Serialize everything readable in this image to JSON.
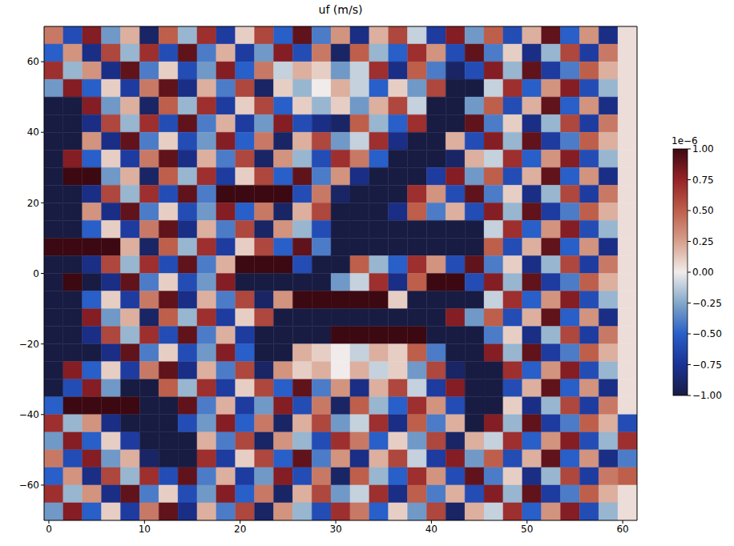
{
  "chart_data": {
    "type": "heatmap",
    "title": "uf (m/s)",
    "xlim": [
      -0.5,
      61.5
    ],
    "ylim": [
      -70,
      70
    ],
    "xticks": [
      0,
      10,
      20,
      30,
      40,
      50,
      60
    ],
    "yticks": [
      {
        "value": -60,
        "label": "−60"
      },
      {
        "value": -40,
        "label": "−40"
      },
      {
        "value": -20,
        "label": "−20"
      },
      0,
      20,
      40,
      60
    ],
    "x": [
      0.5,
      2.5,
      4.5,
      6.5,
      8.5,
      10.5,
      12.5,
      14.5,
      16.5,
      18.5,
      20.5,
      22.5,
      24.5,
      26.5,
      28.5,
      30.5,
      32.5,
      34.5,
      36.5,
      38.5,
      40.5,
      42.5,
      44.5,
      46.5,
      48.5,
      50.5,
      52.5,
      54.5,
      56.5,
      58.5,
      60.5
    ],
    "y": [
      67.5,
      62.5,
      57.5,
      52.5,
      47.5,
      42.5,
      37.5,
      32.5,
      27.5,
      22.5,
      17.5,
      12.5,
      7.5,
      2.5,
      -2.5,
      -7.5,
      -12.5,
      -17.5,
      -22.5,
      -27.5,
      -32.5,
      -37.5,
      -42.5,
      -47.5,
      -52.5,
      -57.5,
      -62.5,
      -67.5
    ],
    "cells": [
      [
        0.4,
        -0.6,
        0.8,
        -0.3,
        0.2,
        -0.9,
        0.5,
        -0.2,
        0.7,
        -0.7,
        0.1,
        0.6,
        -0.5,
        0.9,
        -0.4,
        0.3,
        -0.8,
        0.2,
        0.6,
        -0.1,
        -0.7,
        0.8,
        -0.3,
        0.5,
        -0.6,
        0.2,
        0.9,
        -0.5,
        0.3,
        -0.8,
        0.05
      ],
      [
        -0.5,
        0.3,
        -0.8,
        0.6,
        -0.2,
        0.7,
        -0.6,
        0.9,
        -0.4,
        0.2,
        -0.7,
        -0.3,
        0.8,
        -0.6,
        0.4,
        -0.9,
        0.5,
        -0.2,
        -0.5,
        0.7,
        0.3,
        -0.6,
        0.9,
        -0.4,
        0.1,
        -0.8,
        -0.2,
        0.6,
        -0.7,
        0.4,
        0.05
      ],
      [
        0.7,
        -0.2,
        0.3,
        -0.8,
        0.9,
        -0.4,
        0.1,
        -0.6,
        -0.3,
        0.8,
        -0.5,
        0.4,
        -0.1,
        0.2,
        0.1,
        -0.3,
        -0.1,
        0.7,
        -0.8,
        0.5,
        -0.4,
        -0.9,
        -0.6,
        0.8,
        -0.2,
        0.9,
        -0.7,
        -0.4,
        0.5,
        0.2,
        0.05
      ],
      [
        -0.3,
        0.8,
        -0.5,
        0.1,
        -0.7,
        0.4,
        0.9,
        -0.8,
        0.2,
        -0.4,
        0.6,
        -0.9,
        0.1,
        -0.2,
        0.0,
        0.2,
        -0.1,
        -0.5,
        0.1,
        -0.3,
        0.6,
        -1,
        -1,
        -0.1,
        0.7,
        -0.5,
        0.3,
        0.8,
        -0.6,
        -0.2,
        0.05
      ],
      [
        -1,
        -1,
        0.8,
        -0.3,
        0.2,
        -0.9,
        0.5,
        -0.2,
        0.7,
        -0.7,
        0.1,
        0.6,
        -0.5,
        0.1,
        -0.2,
        0.1,
        -0.3,
        0.2,
        0.6,
        -0.1,
        -1,
        -1,
        -0.3,
        0.5,
        -0.6,
        0.2,
        0.9,
        -0.5,
        0.3,
        -0.8,
        0.05
      ],
      [
        -1,
        -1,
        -0.8,
        0.6,
        -0.2,
        0.7,
        -0.6,
        0.9,
        -0.4,
        0.2,
        -0.7,
        -0.3,
        0.8,
        -0.6,
        -0.8,
        -0.9,
        0.5,
        -0.2,
        -0.5,
        0.7,
        -1,
        -1,
        0.9,
        -0.4,
        0.1,
        -0.8,
        -0.2,
        0.6,
        -0.7,
        0.4,
        0.05
      ],
      [
        -1,
        -1,
        0.3,
        -0.8,
        0.9,
        -0.4,
        0.1,
        -0.6,
        -0.3,
        0.8,
        -0.5,
        0.4,
        -0.9,
        0.2,
        0.6,
        -0.3,
        -0.1,
        0.7,
        -0.8,
        -1,
        -1,
        0.2,
        -0.6,
        0.8,
        -0.2,
        0.9,
        -0.7,
        -0.4,
        0.5,
        0.2,
        0.05
      ],
      [
        -1,
        0.8,
        -0.5,
        0.1,
        -0.7,
        0.4,
        0.9,
        -0.8,
        0.2,
        -0.4,
        0.6,
        -0.9,
        0.3,
        -0.2,
        -0.6,
        0.7,
        0.4,
        -0.5,
        -1,
        -1,
        -1,
        -0.9,
        0.2,
        -0.1,
        0.7,
        -0.5,
        0.3,
        0.8,
        -0.6,
        -0.2,
        0.05
      ],
      [
        -1,
        1,
        1,
        -0.3,
        0.2,
        -0.9,
        0.5,
        -0.2,
        0.7,
        -0.7,
        0.1,
        0.6,
        -0.5,
        0.9,
        -0.4,
        0.3,
        -0.8,
        -1,
        -1,
        -1,
        -0.7,
        0.8,
        -0.3,
        0.5,
        -0.6,
        0.2,
        0.9,
        -0.5,
        0.3,
        -0.8,
        0.05
      ],
      [
        -1,
        -1,
        -0.8,
        0.6,
        -0.2,
        0.7,
        -0.6,
        0.9,
        -0.4,
        1,
        1,
        1,
        1,
        -0.6,
        0.4,
        -0.9,
        -1,
        -1,
        -1,
        0.7,
        0.3,
        -0.6,
        0.9,
        -0.4,
        0.1,
        -0.8,
        -0.2,
        0.6,
        -0.7,
        0.4,
        0.05
      ],
      [
        -1,
        -1,
        0.3,
        -0.8,
        0.9,
        -0.4,
        0.1,
        -0.6,
        -0.3,
        0.8,
        -0.5,
        0.4,
        -0.9,
        0.2,
        0.6,
        -1,
        -1,
        -1,
        -0.8,
        0.5,
        -0.4,
        0.2,
        -0.6,
        0.8,
        -0.2,
        0.9,
        -0.7,
        -0.4,
        0.5,
        0.2,
        0.05
      ],
      [
        -1,
        -1,
        -0.5,
        0.1,
        -0.7,
        0.4,
        0.9,
        -0.8,
        0.2,
        -0.4,
        0.6,
        -0.9,
        0.3,
        -0.2,
        -0.6,
        -1,
        -1,
        -1,
        -1,
        -1,
        -1,
        -1,
        -1,
        -0.1,
        0.7,
        -0.5,
        0.3,
        0.8,
        -0.6,
        -0.2,
        0.05
      ],
      [
        1,
        1,
        1,
        1,
        0.2,
        -0.9,
        0.5,
        -0.2,
        0.7,
        -0.7,
        0.1,
        0.6,
        -0.5,
        0.9,
        -0.4,
        -1,
        -1,
        -1,
        -1,
        -1,
        -1,
        -1,
        -1,
        0.5,
        -0.6,
        0.2,
        0.9,
        -0.5,
        0.3,
        -0.8,
        0.05
      ],
      [
        -1,
        -1,
        -0.8,
        0.6,
        -0.2,
        0.7,
        -0.6,
        0.9,
        -0.4,
        0.2,
        1,
        1,
        1,
        -0.6,
        -1,
        -1,
        0.5,
        -0.2,
        -0.5,
        0.7,
        0.3,
        -0.6,
        0.9,
        -0.4,
        0.1,
        -0.8,
        -0.2,
        0.6,
        -0.7,
        0.4,
        0.05
      ],
      [
        -1,
        1,
        -1,
        -0.8,
        0.9,
        -0.4,
        0.1,
        -0.6,
        -0.3,
        0.8,
        -1,
        -1,
        -1,
        -1,
        -1,
        -0.3,
        -0.1,
        0.7,
        -0.8,
        0.5,
        1,
        1,
        -0.6,
        0.8,
        -0.2,
        0.9,
        -0.7,
        -0.4,
        0.5,
        0.2,
        0.05
      ],
      [
        -1,
        -1,
        -0.5,
        0.1,
        -0.7,
        0.4,
        0.9,
        -0.8,
        0.2,
        -0.4,
        0.6,
        -0.9,
        0.3,
        1,
        1,
        1,
        1,
        1,
        0.1,
        -1,
        -1,
        -1,
        -1,
        -0.1,
        0.7,
        -0.5,
        0.3,
        0.8,
        -0.6,
        -0.2,
        0.05
      ],
      [
        -1,
        -1,
        0.8,
        -0.3,
        0.2,
        -0.9,
        0.5,
        -0.2,
        0.7,
        -0.7,
        0.1,
        0.6,
        -1,
        -1,
        -1,
        -1,
        -1,
        -1,
        -1,
        -1,
        -1,
        0.8,
        -0.3,
        0.5,
        -0.6,
        0.2,
        0.9,
        -0.5,
        0.3,
        -0.8,
        0.05
      ],
      [
        -1,
        -1,
        -0.8,
        0.6,
        -0.2,
        0.7,
        -0.6,
        0.9,
        -0.4,
        0.2,
        -0.7,
        -1,
        -1,
        -1,
        -1,
        1,
        1,
        1,
        1,
        1,
        -1,
        -1,
        -1,
        -0.4,
        0.1,
        -0.8,
        -0.2,
        0.6,
        -0.7,
        0.4,
        0.05
      ],
      [
        -1,
        -1,
        -1,
        -0.8,
        0.9,
        -0.4,
        0.1,
        -0.6,
        -0.3,
        0.8,
        -0.5,
        -1,
        -1,
        0.2,
        0.1,
        0.0,
        -0.1,
        0.2,
        0.1,
        0.5,
        -0.4,
        -1,
        -1,
        0.8,
        -0.2,
        0.9,
        -0.7,
        -0.4,
        0.5,
        0.2,
        0.05
      ],
      [
        -1,
        0.8,
        -0.5,
        0.1,
        -0.7,
        0.4,
        0.9,
        -0.8,
        0.2,
        -0.4,
        0.6,
        -0.9,
        0.3,
        0.1,
        0.2,
        0.0,
        0.2,
        -0.1,
        0.1,
        -0.3,
        0.6,
        -0.9,
        -1,
        -1,
        0.7,
        -0.5,
        0.3,
        0.8,
        -0.6,
        -0.2,
        0.05
      ],
      [
        -1,
        -0.6,
        0.8,
        -0.3,
        -1,
        -1,
        0.5,
        -0.2,
        0.7,
        -0.7,
        0.1,
        0.6,
        -0.5,
        0.9,
        -0.4,
        0.3,
        -0.8,
        0.2,
        0.6,
        -0.1,
        -0.7,
        0.8,
        -1,
        -1,
        -0.6,
        0.2,
        0.9,
        -0.5,
        0.3,
        -0.8,
        0.05
      ],
      [
        -0.5,
        1,
        1,
        1,
        1,
        -1,
        -1,
        0.9,
        -0.4,
        0.2,
        -0.7,
        -0.3,
        0.8,
        -0.6,
        0.4,
        -0.9,
        0.5,
        -0.2,
        -0.5,
        0.7,
        0.3,
        -0.6,
        -1,
        -1,
        0.1,
        -0.8,
        -0.2,
        0.6,
        -0.7,
        0.4,
        0.05
      ],
      [
        0.7,
        -0.2,
        0.3,
        -0.8,
        -1,
        -1,
        -1,
        -0.6,
        -0.3,
        0.8,
        -0.5,
        0.4,
        -0.9,
        0.2,
        0.6,
        -0.3,
        -0.1,
        0.7,
        -0.8,
        0.5,
        -0.4,
        0.2,
        -1,
        0.8,
        -0.2,
        0.9,
        -0.7,
        -0.4,
        0.5,
        0.2,
        -0.6
      ],
      [
        -0.3,
        0.8,
        -0.5,
        0.1,
        -0.7,
        -1,
        -1,
        -1,
        0.2,
        -0.4,
        0.6,
        -0.9,
        0.3,
        -0.2,
        -0.6,
        0.7,
        0.4,
        -0.5,
        0.1,
        -0.3,
        0.6,
        -0.9,
        0.2,
        -0.1,
        0.7,
        -0.5,
        0.3,
        0.8,
        -0.6,
        -0.2,
        0.7
      ],
      [
        0.4,
        -0.6,
        0.8,
        -0.3,
        0.2,
        -0.9,
        -1,
        -1,
        0.7,
        -0.7,
        0.1,
        0.6,
        -0.5,
        0.9,
        -0.4,
        0.3,
        -0.8,
        0.2,
        0.6,
        -0.1,
        -0.7,
        0.8,
        -0.3,
        0.5,
        -0.6,
        0.2,
        0.9,
        -0.5,
        0.3,
        -0.8,
        -0.4
      ],
      [
        -0.5,
        0.3,
        -0.8,
        0.6,
        -0.2,
        0.7,
        -0.6,
        0.9,
        -0.4,
        0.2,
        -0.7,
        -0.3,
        0.8,
        -0.6,
        0.4,
        -0.9,
        0.5,
        -0.2,
        -0.5,
        0.7,
        0.3,
        -0.6,
        0.9,
        -0.4,
        0.1,
        -0.8,
        -0.2,
        0.6,
        -0.7,
        0.4,
        0.5
      ],
      [
        0.7,
        -0.2,
        0.3,
        -0.8,
        0.9,
        -0.4,
        0.1,
        -0.6,
        -0.3,
        0.8,
        -0.5,
        0.4,
        -0.9,
        0.2,
        0.6,
        -0.3,
        -0.1,
        0.7,
        -0.8,
        0.5,
        -0.4,
        0.2,
        -0.6,
        0.8,
        -0.2,
        0.9,
        -0.7,
        -0.4,
        0.5,
        0.2,
        0.05
      ],
      [
        -0.3,
        0.8,
        -0.5,
        0.1,
        -0.7,
        0.4,
        0.9,
        -0.8,
        0.2,
        -0.4,
        0.6,
        -0.9,
        0.3,
        -0.2,
        -0.6,
        0.7,
        0.4,
        -0.5,
        0.1,
        -0.3,
        0.6,
        -0.9,
        0.2,
        -0.1,
        0.7,
        -0.5,
        0.3,
        0.8,
        -0.6,
        -0.2,
        0.05
      ]
    ],
    "colorbar": {
      "range": [
        -1,
        1
      ],
      "offset_label": "1e−6",
      "ticks": [
        {
          "value": -1,
          "label": "−1.00"
        },
        {
          "value": -0.75,
          "label": "−0.75"
        },
        {
          "value": -0.5,
          "label": "−0.50"
        },
        {
          "value": -0.25,
          "label": "−0.25"
        },
        {
          "value": 0,
          "label": "0.00"
        },
        {
          "value": 0.25,
          "label": "0.25"
        },
        {
          "value": 0.5,
          "label": "0.50"
        },
        {
          "value": 0.75,
          "label": "0.75"
        },
        {
          "value": 1,
          "label": "1.00"
        }
      ]
    }
  }
}
